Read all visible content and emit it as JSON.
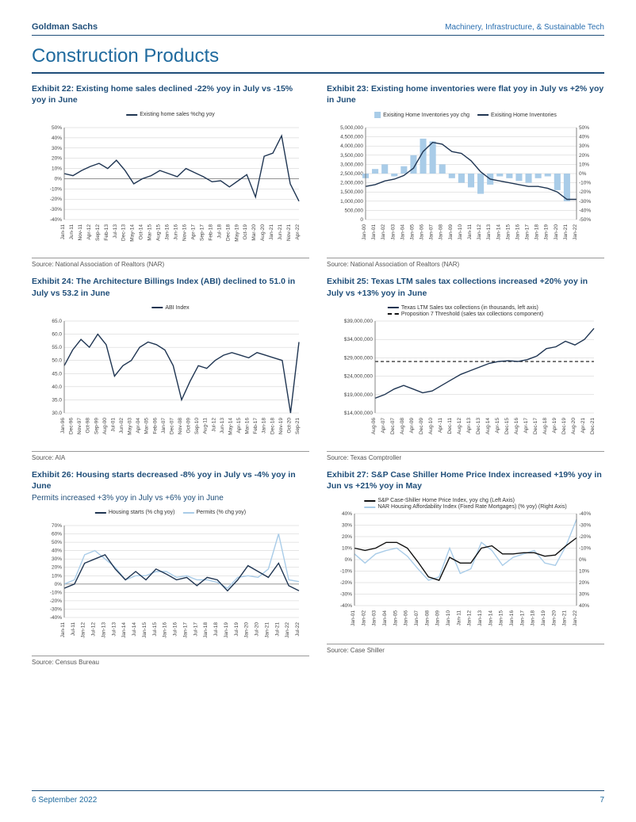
{
  "header": {
    "brand": "Goldman Sachs",
    "category": "Machinery, Infrastructure, & Sustainable Tech"
  },
  "section_title": "Construction Products",
  "footer": {
    "date": "6 September 2022",
    "page": "7"
  },
  "colors": {
    "brand_blue": "#1f4e79",
    "dark_line": "#1f3552",
    "light_blue": "#a9cce8",
    "black": "#111111",
    "grid": "#d9d9d9",
    "axis": "#666666",
    "bg": "#ffffff"
  },
  "charts": {
    "ex22": {
      "title": "Exhibit 22: Existing home sales declined -22% yoy in July vs -15% yoy in June",
      "legend": [
        {
          "label": "Existing home sales %chg yoy",
          "color": "#1f3552",
          "type": "line"
        }
      ],
      "ylabels": [
        "50%",
        "40%",
        "30%",
        "20%",
        "10%",
        "0%",
        "-10%",
        "-20%",
        "-30%",
        "-40%"
      ],
      "ylim": [
        -40,
        50
      ],
      "yzero": 0,
      "xlabels": [
        "Jan-11",
        "Jun-11",
        "Nov-11",
        "Apr-12",
        "Sep-12",
        "Feb-13",
        "Jul-13",
        "Dec-13",
        "May-14",
        "Oct-14",
        "Mar-15",
        "Aug-15",
        "Jan-16",
        "Jun-16",
        "Nov-16",
        "Apr-17",
        "Sep-17",
        "Feb-18",
        "Jul-18",
        "Dec-18",
        "May-19",
        "Oct-19",
        "Mar-20",
        "Aug-20",
        "Jan-21",
        "Jun-21",
        "Nov-21",
        "Apr-22"
      ],
      "series1": [
        5,
        3,
        8,
        12,
        15,
        10,
        18,
        8,
        -5,
        0,
        3,
        8,
        5,
        2,
        10,
        6,
        2,
        -3,
        -2,
        -8,
        -2,
        4,
        -18,
        22,
        25,
        42,
        -5,
        -22
      ],
      "source": "Source: National Association of Realtors (NAR)"
    },
    "ex23": {
      "title": "Exhibit 23: Existing home inventories were flat yoy in July vs +2% yoy in June",
      "legend": [
        {
          "label": "Exisiting Home Inventories yoy chg",
          "color": "#a9cce8",
          "type": "bar"
        },
        {
          "label": "Exisiting Home Inventories",
          "color": "#1f3552",
          "type": "line"
        }
      ],
      "ylabels_left": [
        "5,000,000",
        "4,500,000",
        "4,000,000",
        "3,500,000",
        "3,000,000",
        "2,500,000",
        "2,000,000",
        "1,500,000",
        "1,000,000",
        "500,000",
        "0"
      ],
      "ylim_left": [
        0,
        5000000
      ],
      "ylabels_right": [
        "50%",
        "40%",
        "30%",
        "20%",
        "10%",
        "0%",
        "-10%",
        "-20%",
        "-30%",
        "-40%",
        "-50%"
      ],
      "ylim_right": [
        -50,
        50
      ],
      "xlabels": [
        "Jan-00",
        "Jan-01",
        "Jan-02",
        "Jan-03",
        "Jan-04",
        "Jan-05",
        "Jan-06",
        "Jan-07",
        "Jan-08",
        "Jan-09",
        "Jan-10",
        "Jan-11",
        "Jan-12",
        "Jan-13",
        "Jan-14",
        "Jan-15",
        "Jan-16",
        "Jan-17",
        "Jan-18",
        "Jan-19",
        "Jan-20",
        "Jan-21",
        "Jan-22"
      ],
      "bars": [
        -5,
        5,
        10,
        -3,
        8,
        20,
        38,
        35,
        10,
        -5,
        -10,
        -15,
        -22,
        -12,
        -3,
        -5,
        -8,
        -10,
        -5,
        -3,
        -18,
        -30,
        0
      ],
      "line": [
        1800000,
        1900000,
        2100000,
        2200000,
        2400000,
        2800000,
        3700000,
        4200000,
        4100000,
        3700000,
        3600000,
        3200000,
        2600000,
        2200000,
        2100000,
        2000000,
        1900000,
        1800000,
        1800000,
        1700000,
        1500000,
        1100000,
        1100000
      ],
      "source": "Source: National Association of Realtors (NAR)"
    },
    "ex24": {
      "title": "Exhibit 24: The Architecture Billings Index (ABI) declined to 51.0 in July vs 53.2 in June",
      "legend": [
        {
          "label": "ABI Index",
          "color": "#1f3552",
          "type": "line"
        }
      ],
      "ylabels": [
        "65.0",
        "60.0",
        "55.0",
        "50.0",
        "45.0",
        "40.0",
        "35.0",
        "30.0"
      ],
      "ylim": [
        30,
        65
      ],
      "xlabels": [
        "Jan-96",
        "Dec-96",
        "Nov-97",
        "Oct-98",
        "Sep-99",
        "Aug-00",
        "Jul-01",
        "Jun-02",
        "May-03",
        "Apr-04",
        "Mar-05",
        "Feb-06",
        "Jan-07",
        "Dec-07",
        "Nov-08",
        "Oct-09",
        "Sep-10",
        "Aug-11",
        "Jul-12",
        "Jun-13",
        "May-14",
        "Apr-15",
        "Mar-16",
        "Feb-17",
        "Jan-18",
        "Dec-18",
        "Nov-19",
        "Oct-20",
        "Sep-21"
      ],
      "series1": [
        48,
        54,
        58,
        55,
        60,
        56,
        44,
        48,
        50,
        55,
        57,
        56,
        54,
        48,
        35,
        42,
        48,
        47,
        50,
        52,
        53,
        52,
        51,
        53,
        52,
        51,
        50,
        30,
        57
      ],
      "source": "Source: AIA"
    },
    "ex25": {
      "title": "Exhibit 25: Texas LTM sales tax collections increased +20% yoy in July vs +13% yoy in June",
      "legend": [
        {
          "label": "Texas LTM Sales tax collections (in thousands, left axis)",
          "color": "#1f3552",
          "type": "line"
        },
        {
          "label": "Proposition 7 Threshold (sales tax collections component)",
          "color": "#111111",
          "type": "dash"
        }
      ],
      "ylabels": [
        "$39,000,000",
        "$34,000,000",
        "$29,000,000",
        "$24,000,000",
        "$19,000,000",
        "$14,000,000"
      ],
      "ylim": [
        14000000,
        39000000
      ],
      "threshold": 28000000,
      "xlabels": [
        "Aug-06",
        "Apr-07",
        "Dec-07",
        "Aug-08",
        "Apr-09",
        "Dec-09",
        "Aug-10",
        "Apr-11",
        "Dec-11",
        "Aug-12",
        "Apr-13",
        "Dec-13",
        "Aug-14",
        "Apr-15",
        "Dec-15",
        "Aug-16",
        "Apr-17",
        "Dec-17",
        "Aug-18",
        "Apr-19",
        "Dec-19",
        "Aug-20",
        "Apr-21",
        "Dec-21"
      ],
      "series1": [
        18000000,
        19000000,
        20500000,
        21500000,
        20500000,
        19500000,
        20000000,
        21500000,
        23000000,
        24500000,
        25500000,
        26500000,
        27500000,
        28000000,
        28200000,
        28000000,
        28500000,
        29500000,
        31500000,
        32000000,
        33500000,
        32500000,
        34000000,
        37000000
      ],
      "source": "Source: Texas Comptroller"
    },
    "ex26": {
      "title": "Exhibit 26: Housing starts decreased -8% yoy in July vs -4% yoy in June",
      "subtitle": "Permits increased +3% yoy in July vs +6% yoy in June",
      "legend": [
        {
          "label": "Housing starts (% chg yoy)",
          "color": "#1f3552",
          "type": "line"
        },
        {
          "label": "Permits (% chg yoy)",
          "color": "#a9cce8",
          "type": "line"
        }
      ],
      "ylabels": [
        "70%",
        "60%",
        "50%",
        "40%",
        "30%",
        "20%",
        "10%",
        "0%",
        "-10%",
        "-20%",
        "-30%",
        "-40%"
      ],
      "ylim": [
        -40,
        70
      ],
      "yzero": 0,
      "xlabels": [
        "Jan-11",
        "Jul-11",
        "Jan-12",
        "Jul-12",
        "Jan-13",
        "Jul-13",
        "Jan-14",
        "Jul-14",
        "Jan-15",
        "Jul-15",
        "Jan-16",
        "Jul-16",
        "Jan-17",
        "Jul-17",
        "Jan-18",
        "Jul-18",
        "Jan-19",
        "Jul-19",
        "Jan-20",
        "Jul-20",
        "Jan-21",
        "Jul-21",
        "Jan-22",
        "Jul-22"
      ],
      "series1": [
        -5,
        0,
        25,
        30,
        35,
        18,
        5,
        15,
        5,
        18,
        12,
        5,
        8,
        -2,
        8,
        5,
        -8,
        5,
        22,
        15,
        8,
        25,
        -2,
        -8
      ],
      "series2": [
        0,
        5,
        35,
        40,
        30,
        20,
        5,
        10,
        10,
        15,
        15,
        8,
        10,
        5,
        5,
        2,
        -5,
        8,
        10,
        8,
        18,
        60,
        5,
        3
      ],
      "source": "Source: Census Bureau"
    },
    "ex27": {
      "title": "Exhibit 27: S&P Case Shiller Home Price Index increased +19% yoy in Jun vs +21% yoy in May",
      "legend": [
        {
          "label": "S&P Case-Shiller Home Price Index, yoy chg (Left Axis)",
          "color": "#111111",
          "type": "line"
        },
        {
          "label": "NAR Housing Affordability Index (Fixed Rate Mortgages) (% yoy) (Right Axis)",
          "color": "#a9cce8",
          "type": "line"
        }
      ],
      "ylabels_left": [
        "40%",
        "30%",
        "20%",
        "10%",
        "0%",
        "-10%",
        "-20%",
        "-30%",
        "-40%"
      ],
      "ylim_left": [
        -40,
        40
      ],
      "ylabels_right": [
        "-40%",
        "-30%",
        "-20%",
        "-10%",
        "0%",
        "10%",
        "20%",
        "30%",
        "40%"
      ],
      "ylim_right": [
        -40,
        40
      ],
      "xlabels": [
        "Jan-01",
        "Jan-02",
        "Jan-03",
        "Jan-04",
        "Jan-05",
        "Jan-06",
        "Jan-07",
        "Jan-08",
        "Jan-09",
        "Jan-10",
        "Jan-11",
        "Jan-12",
        "Jan-13",
        "Jan-14",
        "Jan-15",
        "Jan-16",
        "Jan-17",
        "Jan-18",
        "Jan-19",
        "Jan-20",
        "Jan-21",
        "Jan-22"
      ],
      "series_black": [
        10,
        8,
        10,
        15,
        15,
        10,
        -2,
        -15,
        -18,
        2,
        -3,
        -3,
        10,
        12,
        5,
        5,
        6,
        6,
        3,
        4,
        12,
        19
      ],
      "series_light": [
        -5,
        3,
        -5,
        -8,
        -10,
        -3,
        8,
        18,
        15,
        -10,
        12,
        8,
        -15,
        -8,
        5,
        -2,
        -5,
        -8,
        3,
        5,
        -12,
        -35
      ],
      "source": "Source: Case Shiller"
    }
  }
}
